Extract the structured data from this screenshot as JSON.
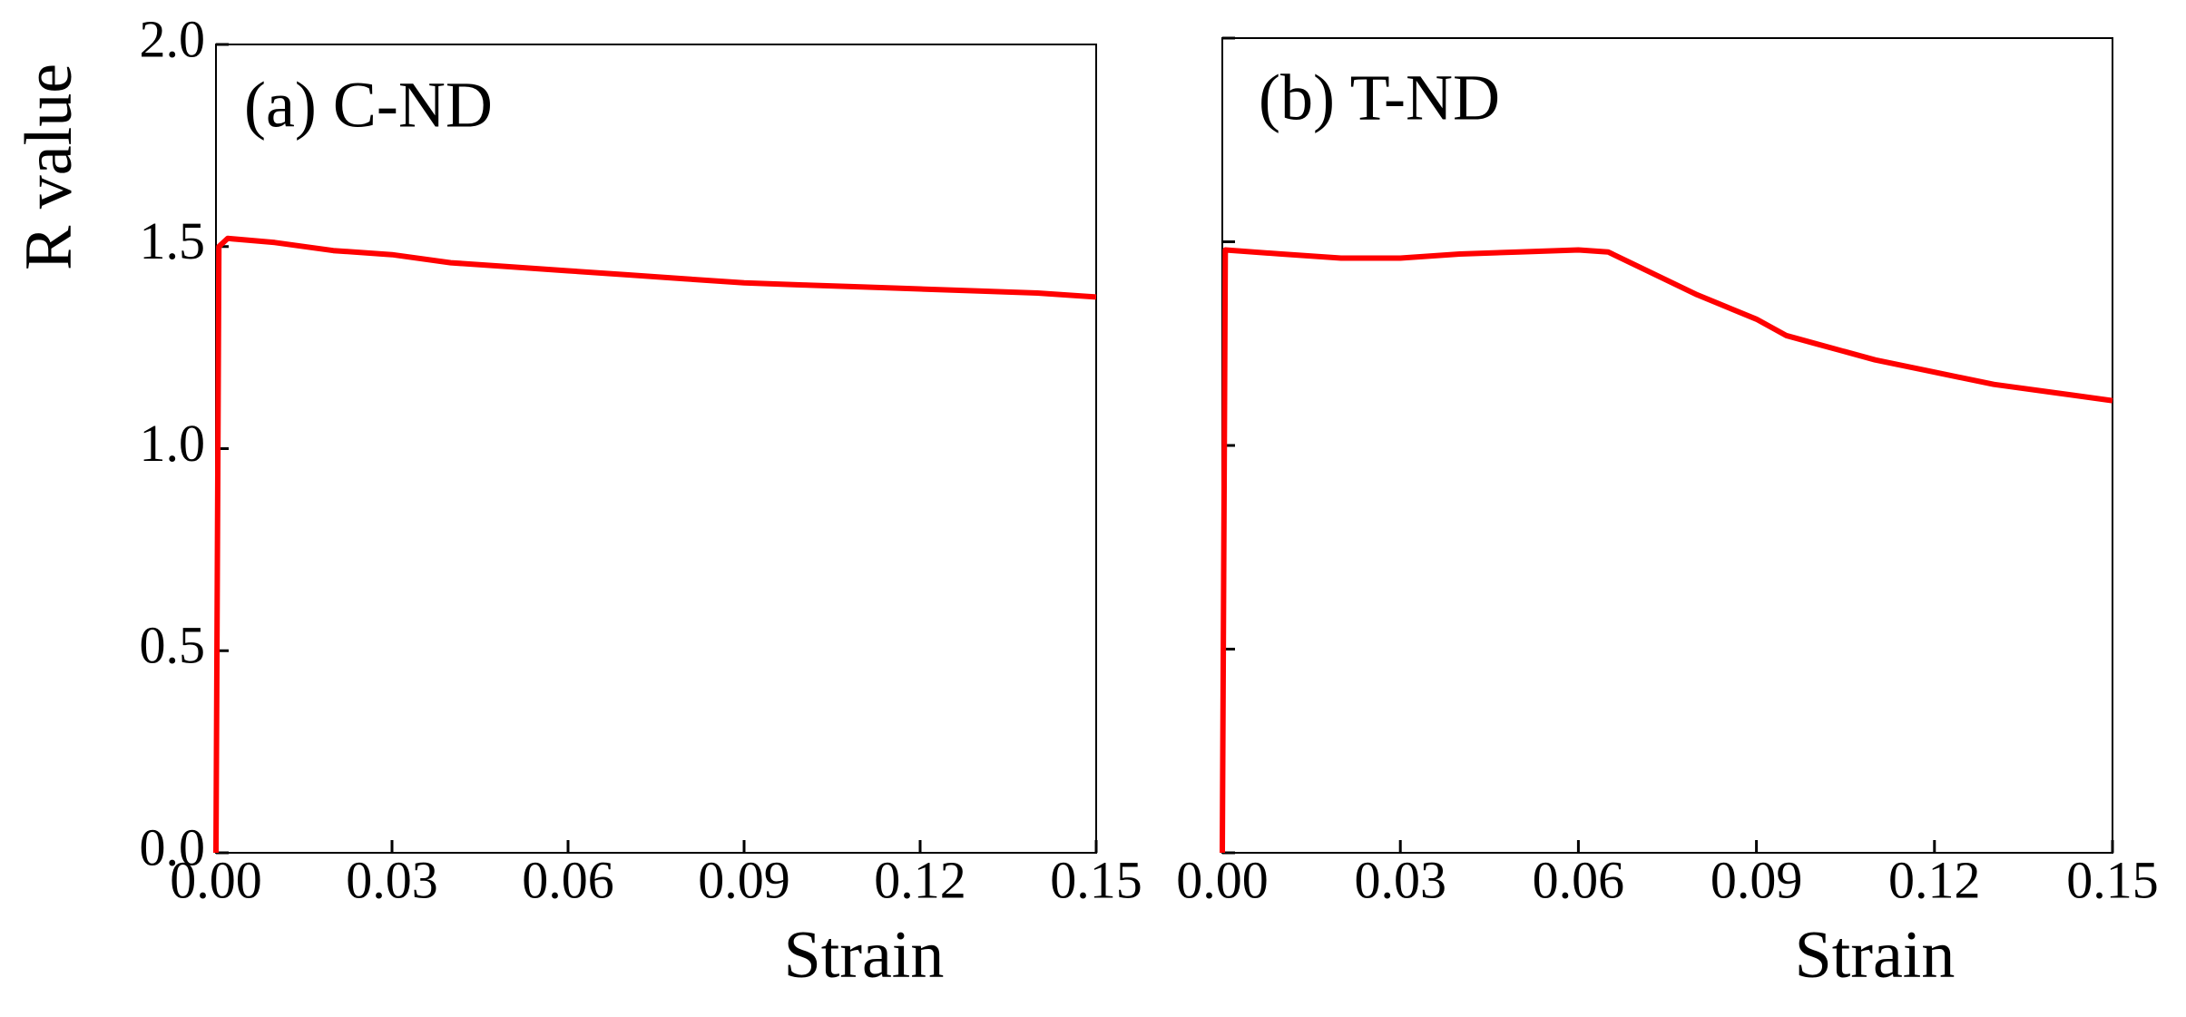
{
  "chart_data": [
    {
      "type": "line",
      "title": "(a) C-ND",
      "xlabel": "Strain",
      "ylabel": "R value",
      "color": "#ff0000",
      "x": [
        0,
        0.0005,
        0.002,
        0.01,
        0.02,
        0.03,
        0.04,
        0.05,
        0.06,
        0.07,
        0.08,
        0.09,
        0.1,
        0.11,
        0.12,
        0.13,
        0.14,
        0.15
      ],
      "values": [
        0,
        1.5,
        1.52,
        1.51,
        1.49,
        1.48,
        1.46,
        1.45,
        1.44,
        1.43,
        1.42,
        1.41,
        1.405,
        1.4,
        1.395,
        1.39,
        1.385,
        1.375
      ],
      "xlim": [
        0,
        0.15
      ],
      "ylim": [
        0,
        2
      ],
      "xticks": [
        {
          "value": 0,
          "label": "0.00"
        },
        {
          "value": 0.03,
          "label": "0.03"
        },
        {
          "value": 0.06,
          "label": "0.06"
        },
        {
          "value": 0.09,
          "label": "0.09"
        },
        {
          "value": 0.12,
          "label": "0.12"
        },
        {
          "value": 0.15,
          "label": "0.15"
        }
      ],
      "yticks": [
        {
          "value": 0,
          "label": "0.0"
        },
        {
          "value": 0.5,
          "label": "0.5"
        },
        {
          "value": 1,
          "label": "1.0"
        },
        {
          "value": 1.5,
          "label": "1.5"
        },
        {
          "value": 2,
          "label": "2.0"
        }
      ]
    },
    {
      "type": "line",
      "title": "(b) T-ND",
      "xlabel": "Strain",
      "color": "#ff0000",
      "x": [
        0,
        0.0005,
        0.01,
        0.02,
        0.03,
        0.04,
        0.05,
        0.06,
        0.065,
        0.07,
        0.08,
        0.09,
        0.095,
        0.1,
        0.11,
        0.12,
        0.13,
        0.14,
        0.15
      ],
      "values": [
        0,
        1.48,
        1.47,
        1.46,
        1.46,
        1.47,
        1.475,
        1.48,
        1.475,
        1.44,
        1.37,
        1.31,
        1.27,
        1.25,
        1.21,
        1.18,
        1.15,
        1.13,
        1.11
      ],
      "xlim": [
        0,
        0.15
      ],
      "ylim": [
        0,
        2
      ],
      "xticks": [
        {
          "value": 0,
          "label": "0.00"
        },
        {
          "value": 0.03,
          "label": "0.03"
        },
        {
          "value": 0.06,
          "label": "0.06"
        },
        {
          "value": 0.09,
          "label": "0.09"
        },
        {
          "value": 0.12,
          "label": "0.12"
        },
        {
          "value": 0.15,
          "label": "0.15"
        }
      ],
      "yticks": [
        0,
        0.5,
        1,
        1.5,
        2
      ]
    }
  ]
}
